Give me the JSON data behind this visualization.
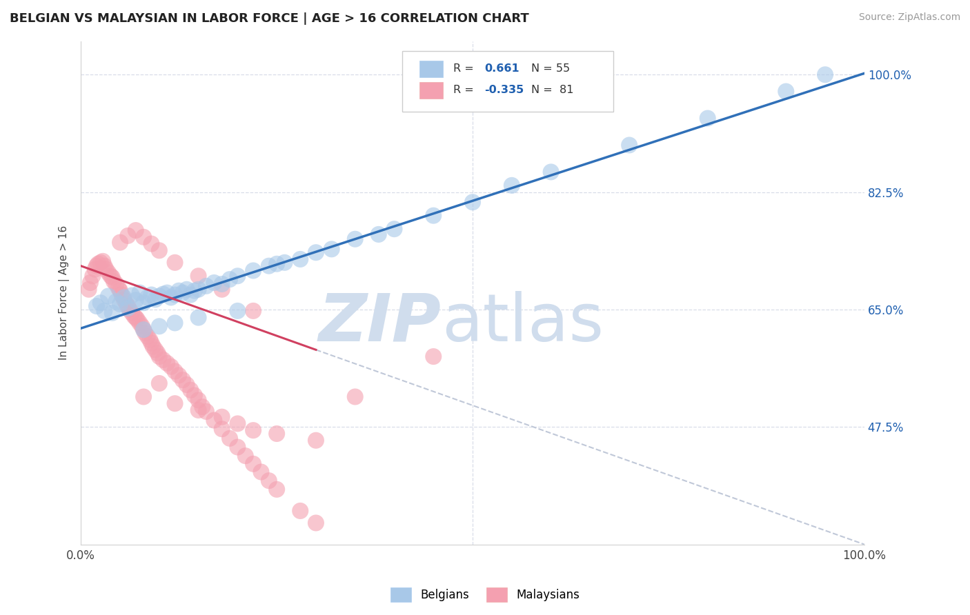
{
  "title": "BELGIAN VS MALAYSIAN IN LABOR FORCE | AGE > 16 CORRELATION CHART",
  "source_text": "Source: ZipAtlas.com",
  "ylabel": "In Labor Force | Age > 16",
  "xlim": [
    0.0,
    1.0
  ],
  "ylim": [
    0.3,
    1.05
  ],
  "yticks": [
    0.475,
    0.65,
    0.825,
    1.0
  ],
  "yticklabels": [
    "47.5%",
    "65.0%",
    "82.5%",
    "100.0%"
  ],
  "xtick_positions": [
    0.0,
    0.5,
    1.0
  ],
  "xticklabels": [
    "0.0%",
    "",
    "100.0%"
  ],
  "belgian_color": "#a8c8e8",
  "malaysian_color": "#f4a0b0",
  "belgian_R": 0.661,
  "belgian_N": 55,
  "malaysian_R": -0.335,
  "malaysian_N": 81,
  "trend_blue_color": "#3070b8",
  "trend_pink_color": "#d04060",
  "trend_dash_color": "#c0c8d8",
  "watermark_zip": "ZIP",
  "watermark_atlas": "atlas",
  "watermark_color": "#d0dded",
  "bg_color": "#ffffff",
  "grid_color": "#d8dde8",
  "legend_R_color": "#2060b0",
  "belgian_x": [
    0.02,
    0.025,
    0.03,
    0.035,
    0.04,
    0.045,
    0.05,
    0.055,
    0.06,
    0.065,
    0.07,
    0.075,
    0.08,
    0.085,
    0.09,
    0.095,
    0.1,
    0.105,
    0.11,
    0.115,
    0.12,
    0.125,
    0.13,
    0.135,
    0.14,
    0.145,
    0.15,
    0.16,
    0.17,
    0.18,
    0.19,
    0.2,
    0.22,
    0.24,
    0.26,
    0.28,
    0.3,
    0.35,
    0.4,
    0.45,
    0.5,
    0.55,
    0.6,
    0.7,
    0.8,
    0.9,
    0.95,
    0.32,
    0.38,
    0.25,
    0.08,
    0.1,
    0.12,
    0.15,
    0.2
  ],
  "belgian_y": [
    0.655,
    0.66,
    0.648,
    0.67,
    0.645,
    0.662,
    0.658,
    0.668,
    0.652,
    0.671,
    0.664,
    0.675,
    0.66,
    0.668,
    0.672,
    0.665,
    0.67,
    0.673,
    0.675,
    0.668,
    0.672,
    0.678,
    0.675,
    0.68,
    0.672,
    0.678,
    0.68,
    0.685,
    0.69,
    0.688,
    0.695,
    0.7,
    0.708,
    0.715,
    0.72,
    0.725,
    0.735,
    0.755,
    0.77,
    0.79,
    0.81,
    0.835,
    0.855,
    0.895,
    0.935,
    0.975,
    1.0,
    0.74,
    0.762,
    0.718,
    0.62,
    0.625,
    0.63,
    0.638,
    0.648
  ],
  "malaysian_x": [
    0.01,
    0.012,
    0.015,
    0.018,
    0.02,
    0.022,
    0.025,
    0.028,
    0.03,
    0.032,
    0.035,
    0.038,
    0.04,
    0.042,
    0.045,
    0.048,
    0.05,
    0.052,
    0.055,
    0.058,
    0.06,
    0.062,
    0.065,
    0.068,
    0.07,
    0.072,
    0.075,
    0.078,
    0.08,
    0.082,
    0.085,
    0.088,
    0.09,
    0.092,
    0.095,
    0.098,
    0.1,
    0.105,
    0.11,
    0.115,
    0.12,
    0.125,
    0.13,
    0.135,
    0.14,
    0.145,
    0.15,
    0.155,
    0.16,
    0.17,
    0.18,
    0.19,
    0.2,
    0.21,
    0.22,
    0.23,
    0.24,
    0.25,
    0.28,
    0.3,
    0.05,
    0.06,
    0.07,
    0.08,
    0.09,
    0.1,
    0.12,
    0.15,
    0.18,
    0.22,
    0.1,
    0.08,
    0.15,
    0.2,
    0.12,
    0.25,
    0.18,
    0.3,
    0.22,
    0.35,
    0.45
  ],
  "malaysian_y": [
    0.68,
    0.69,
    0.7,
    0.71,
    0.715,
    0.718,
    0.72,
    0.722,
    0.715,
    0.71,
    0.705,
    0.7,
    0.698,
    0.692,
    0.688,
    0.682,
    0.678,
    0.672,
    0.665,
    0.658,
    0.655,
    0.65,
    0.645,
    0.64,
    0.638,
    0.635,
    0.63,
    0.625,
    0.62,
    0.615,
    0.61,
    0.605,
    0.6,
    0.595,
    0.59,
    0.585,
    0.58,
    0.575,
    0.57,
    0.565,
    0.558,
    0.552,
    0.545,
    0.538,
    0.53,
    0.522,
    0.515,
    0.505,
    0.498,
    0.485,
    0.472,
    0.458,
    0.445,
    0.432,
    0.42,
    0.408,
    0.395,
    0.382,
    0.35,
    0.332,
    0.75,
    0.76,
    0.768,
    0.758,
    0.748,
    0.738,
    0.72,
    0.7,
    0.68,
    0.648,
    0.54,
    0.52,
    0.5,
    0.48,
    0.51,
    0.465,
    0.49,
    0.455,
    0.47,
    0.52,
    0.58
  ],
  "blue_trend_x0": 0.0,
  "blue_trend_y0": 0.622,
  "blue_trend_x1": 1.0,
  "blue_trend_y1": 1.002,
  "pink_trend_x0": 0.0,
  "pink_trend_y0": 0.715,
  "pink_trend_x1_solid": 0.3,
  "pink_trend_y1_solid": 0.59,
  "pink_trend_x1_dash": 1.0,
  "pink_trend_y1_dash": 0.3
}
